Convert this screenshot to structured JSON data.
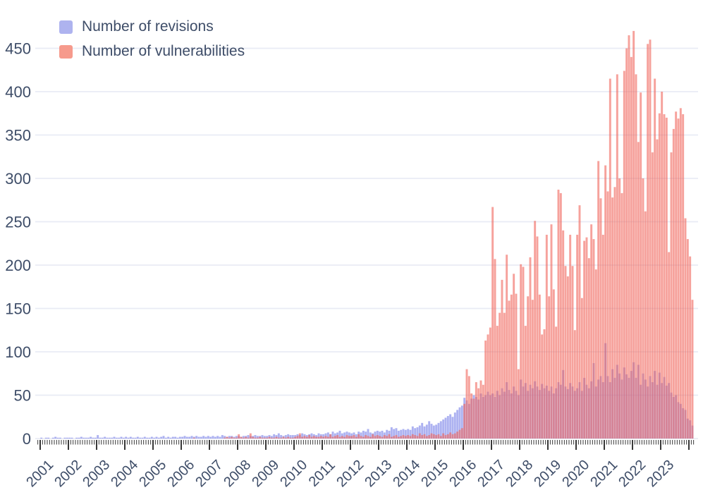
{
  "chart_data": {
    "type": "bar",
    "title": "",
    "xlabel": "",
    "ylabel": "",
    "x_start": "2001-01",
    "x_end": "2024-02",
    "bar_period": "month",
    "ylim": [
      0,
      475
    ],
    "yticks": [
      0,
      50,
      100,
      150,
      200,
      250,
      300,
      350,
      400,
      450
    ],
    "grid": true,
    "legend_position": "top-left",
    "x_year_labels": [
      "2001",
      "2002",
      "2003",
      "2004",
      "2005",
      "2006",
      "2007",
      "2008",
      "2009",
      "2010",
      "2011",
      "2012",
      "2013",
      "2014",
      "2015",
      "2016",
      "2017",
      "2018",
      "2019",
      "2020",
      "2021",
      "2022",
      "2023"
    ],
    "series": [
      {
        "name": "Number of revisions",
        "values": [
          1,
          0,
          1,
          1,
          0,
          1,
          2,
          1,
          1,
          0,
          1,
          1,
          1,
          1,
          0,
          1,
          1,
          2,
          1,
          1,
          1,
          2,
          1,
          1,
          4,
          1,
          1,
          2,
          1,
          1,
          1,
          2,
          1,
          1,
          2,
          1,
          2,
          1,
          2,
          1,
          1,
          2,
          1,
          1,
          2,
          1,
          1,
          2,
          1,
          2,
          1,
          2,
          3,
          1,
          2,
          1,
          2,
          2,
          1,
          2,
          2,
          3,
          2,
          2,
          3,
          2,
          3,
          2,
          2,
          3,
          2,
          3,
          2,
          3,
          2,
          3,
          2,
          4,
          3,
          2,
          3,
          3,
          2,
          3,
          3,
          2,
          3,
          3,
          4,
          3,
          3,
          4,
          3,
          3,
          4,
          3,
          3,
          4,
          3,
          5,
          4,
          6,
          4,
          3,
          4,
          5,
          4,
          4,
          4,
          5,
          4,
          6,
          5,
          4,
          5,
          6,
          5,
          4,
          6,
          5,
          5,
          6,
          7,
          5,
          8,
          6,
          7,
          9,
          6,
          7,
          8,
          7,
          6,
          7,
          5,
          8,
          7,
          9,
          8,
          11,
          7,
          6,
          8,
          9,
          8,
          9,
          7,
          10,
          9,
          13,
          11,
          12,
          9,
          10,
          11,
          10,
          11,
          10,
          14,
          12,
          13,
          15,
          18,
          14,
          16,
          20,
          17,
          15,
          16,
          18,
          20,
          22,
          24,
          26,
          28,
          25,
          30,
          33,
          36,
          38,
          47,
          44,
          40,
          46,
          50,
          48,
          45,
          52,
          48,
          50,
          54,
          50,
          52,
          48,
          55,
          50,
          58,
          54,
          65,
          56,
          52,
          60,
          55,
          50,
          68,
          60,
          64,
          55,
          62,
          58,
          66,
          60,
          56,
          63,
          58,
          61,
          55,
          60,
          52,
          58,
          65,
          62,
          79,
          60,
          57,
          64,
          60,
          55,
          58,
          65,
          55,
          70,
          62,
          58,
          66,
          87,
          60,
          68,
          72,
          65,
          110,
          72,
          65,
          80,
          70,
          85,
          75,
          68,
          82,
          74,
          70,
          78,
          88,
          70,
          85,
          62,
          75,
          68,
          60,
          72,
          65,
          78,
          62,
          76,
          64,
          71,
          61,
          64,
          53,
          48,
          50,
          42,
          40,
          35,
          33,
          23,
          21,
          15
        ]
      },
      {
        "name": "Number of vulnerabilities",
        "values": [
          0,
          0,
          0,
          0,
          0,
          0,
          0,
          0,
          0,
          0,
          0,
          0,
          0,
          0,
          0,
          0,
          0,
          0,
          0,
          0,
          0,
          0,
          0,
          0,
          0,
          0,
          0,
          0,
          0,
          0,
          0,
          0,
          0,
          0,
          0,
          0,
          0,
          0,
          0,
          0,
          0,
          0,
          0,
          0,
          0,
          0,
          0,
          0,
          0,
          0,
          0,
          0,
          0,
          0,
          0,
          0,
          0,
          0,
          0,
          0,
          0,
          0,
          0,
          0,
          0,
          1,
          0,
          0,
          0,
          0,
          0,
          0,
          0,
          0,
          0,
          0,
          0,
          0,
          1,
          2,
          1,
          2,
          1,
          1,
          5,
          2,
          1,
          2,
          1,
          6,
          2,
          1,
          1,
          2,
          1,
          1,
          1,
          2,
          1,
          1,
          2,
          1,
          1,
          2,
          1,
          2,
          1,
          1,
          2,
          3,
          6,
          2,
          3,
          2,
          4,
          2,
          3,
          2,
          2,
          3,
          2,
          3,
          2,
          5,
          2,
          3,
          4,
          2,
          3,
          2,
          4,
          3,
          3,
          4,
          2,
          5,
          3,
          2,
          4,
          3,
          2,
          5,
          3,
          4,
          3,
          2,
          4,
          3,
          5,
          2,
          3,
          4,
          2,
          3,
          4,
          3,
          4,
          3,
          5,
          4,
          3,
          6,
          4,
          5,
          3,
          4,
          6,
          5,
          4,
          5,
          3,
          6,
          4,
          5,
          7,
          5,
          6,
          8,
          10,
          12,
          40,
          80,
          72,
          52,
          46,
          65,
          58,
          67,
          62,
          113,
          120,
          128,
          267,
          207,
          130,
          145,
          183,
          145,
          212,
          159,
          166,
          190,
          167,
          80,
          201,
          198,
          130,
          164,
          209,
          160,
          251,
          233,
          166,
          120,
          126,
          235,
          164,
          247,
          172,
          129,
          287,
          283,
          240,
          199,
          187,
          235,
          199,
          125,
          235,
          269,
          162,
          228,
          232,
          208,
          247,
          230,
          195,
          320,
          277,
          235,
          315,
          285,
          415,
          278,
          290,
          420,
          300,
          283,
          424,
          450,
          465,
          440,
          470,
          420,
          342,
          399,
          300,
          262,
          455,
          460,
          330,
          415,
          345,
          375,
          400,
          374,
          370,
          215,
          330,
          357,
          377,
          369,
          381,
          374,
          254,
          230,
          210,
          160
        ]
      }
    ]
  },
  "legend": {
    "items": [
      {
        "label": "Number of revisions"
      },
      {
        "label": "Number of vulnerabilities"
      }
    ]
  },
  "colors": {
    "revisions_bar": "rgba(110,120,230,0.57)",
    "vulnerabilities_bar": "rgba(240,100,90,0.60)",
    "revisions_legend": "#aeb3ef",
    "vulnerabilities_legend": "#f69a8c",
    "text": "#3e4d68",
    "gridline": "#e9ebf5",
    "tick": "#222222"
  }
}
